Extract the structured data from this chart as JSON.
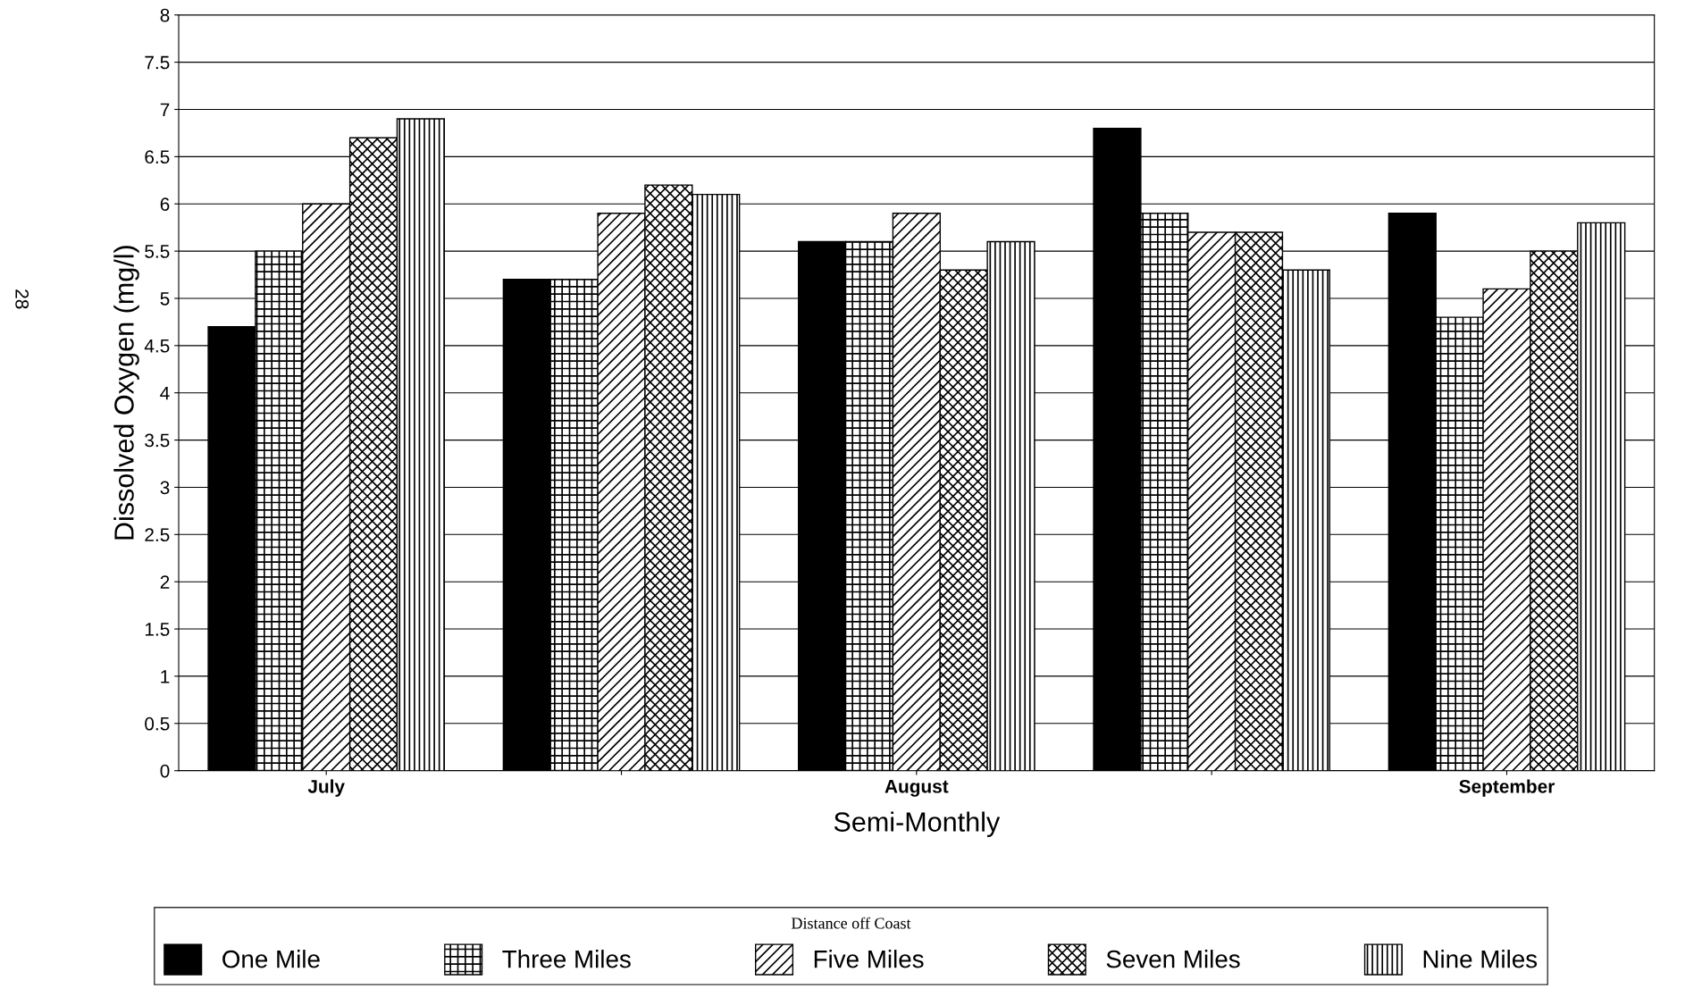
{
  "chart_data": {
    "type": "bar",
    "xlabel": "Semi-Monthly",
    "ylabel": "Dissolved Oxygen (mg/l)",
    "legend_title": "Distance off Coast",
    "categories": [
      "July",
      null,
      "August",
      null,
      "September"
    ],
    "series": [
      {
        "name": "One Mile",
        "color": "#000000",
        "values": [
          4.7,
          5.2,
          5.6,
          6.8,
          5.9
        ]
      },
      {
        "name": "Three Miles",
        "color": "#000000",
        "values": [
          5.5,
          5.2,
          5.6,
          5.9,
          4.8
        ]
      },
      {
        "name": "Five Miles",
        "color": "#000000",
        "values": [
          6.0,
          5.9,
          5.9,
          5.7,
          5.1
        ]
      },
      {
        "name": "Seven Miles",
        "color": "#000000",
        "values": [
          6.7,
          6.2,
          5.3,
          5.7,
          5.5
        ]
      },
      {
        "name": "Nine Miles",
        "color": "#000000",
        "values": [
          6.9,
          6.1,
          5.6,
          5.3,
          5.8
        ]
      }
    ],
    "ylim": [
      0,
      8
    ],
    "yticks": [
      0,
      0.5,
      1,
      1.5,
      2,
      2.5,
      3,
      3.5,
      4,
      4.5,
      5,
      5.5,
      6,
      6.5,
      7,
      7.5,
      8
    ],
    "grid": "y",
    "legend": "bottom",
    "annotations": [
      "28"
    ]
  }
}
